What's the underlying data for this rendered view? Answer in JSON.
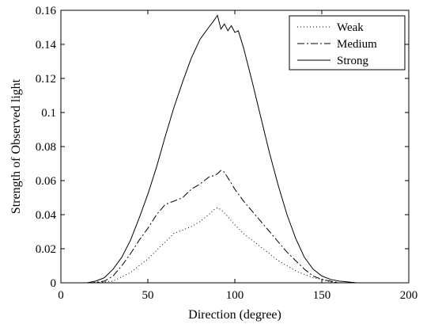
{
  "chart_data": {
    "type": "line",
    "title": "",
    "xlabel": "Direction (degree)",
    "ylabel": "Strength of Observed light",
    "xlim": [
      0,
      200
    ],
    "ylim": [
      0,
      0.16
    ],
    "x_ticks": [
      0,
      50,
      100,
      150,
      200
    ],
    "y_ticks": [
      0,
      0.02,
      0.04,
      0.06,
      0.08,
      0.1,
      0.12,
      0.14,
      0.16
    ],
    "x_tick_labels": [
      "0",
      "50",
      "100",
      "150",
      "200"
    ],
    "y_tick_labels": [
      "0",
      "0.02",
      "0.04",
      "0.06",
      "0.08",
      "0.1",
      "0.12",
      "0.14",
      "0.16"
    ],
    "grid": false,
    "legend_position": "top-right",
    "series": [
      {
        "name": "Weak",
        "style": "dotted",
        "color": "#000000",
        "x": [
          0,
          20,
          30,
          40,
          50,
          55,
          60,
          65,
          70,
          75,
          80,
          85,
          88,
          90,
          92,
          95,
          100,
          105,
          110,
          115,
          120,
          125,
          130,
          135,
          140,
          145,
          150,
          155,
          160,
          170,
          200
        ],
        "y": [
          0,
          0,
          0.001,
          0.006,
          0.014,
          0.019,
          0.024,
          0.029,
          0.031,
          0.033,
          0.036,
          0.04,
          0.043,
          0.044,
          0.043,
          0.04,
          0.034,
          0.029,
          0.025,
          0.021,
          0.017,
          0.013,
          0.01,
          0.007,
          0.005,
          0.003,
          0.002,
          0.0005,
          0,
          0,
          0
        ]
      },
      {
        "name": "Medium",
        "style": "dash-dot",
        "color": "#000000",
        "x": [
          0,
          18,
          25,
          30,
          35,
          40,
          45,
          50,
          55,
          60,
          65,
          70,
          75,
          80,
          85,
          88,
          90,
          92,
          94,
          97,
          100,
          105,
          110,
          115,
          120,
          125,
          130,
          135,
          140,
          145,
          150,
          155,
          160,
          170,
          200
        ],
        "y": [
          0,
          0,
          0.001,
          0.004,
          0.01,
          0.017,
          0.025,
          0.032,
          0.04,
          0.046,
          0.048,
          0.05,
          0.055,
          0.058,
          0.062,
          0.063,
          0.064,
          0.066,
          0.065,
          0.06,
          0.055,
          0.048,
          0.042,
          0.036,
          0.03,
          0.024,
          0.018,
          0.013,
          0.008,
          0.004,
          0.002,
          0.001,
          0,
          0,
          0
        ]
      },
      {
        "name": "Strong",
        "style": "solid",
        "color": "#000000",
        "x": [
          0,
          15,
          20,
          25,
          30,
          35,
          40,
          45,
          50,
          55,
          60,
          65,
          70,
          75,
          80,
          85,
          88,
          90,
          92,
          94,
          96,
          98,
          100,
          102,
          105,
          110,
          115,
          120,
          125,
          130,
          135,
          140,
          145,
          150,
          155,
          160,
          165,
          170,
          200
        ],
        "y": [
          0,
          0,
          0.001,
          0.003,
          0.008,
          0.015,
          0.025,
          0.038,
          0.052,
          0.068,
          0.086,
          0.103,
          0.118,
          0.132,
          0.143,
          0.15,
          0.154,
          0.157,
          0.149,
          0.152,
          0.148,
          0.151,
          0.147,
          0.148,
          0.138,
          0.118,
          0.097,
          0.076,
          0.057,
          0.04,
          0.026,
          0.015,
          0.008,
          0.004,
          0.002,
          0.001,
          0.0005,
          0,
          0
        ]
      }
    ]
  }
}
